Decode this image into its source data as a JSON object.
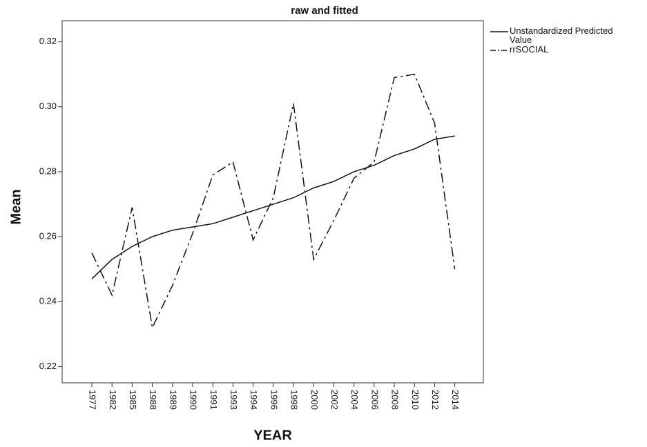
{
  "chart_data": {
    "type": "line",
    "title": "raw and fitted",
    "x_label": "YEAR",
    "y_label": "Mean",
    "categories": [
      "1977",
      "1982",
      "1985",
      "1988",
      "1989",
      "1990",
      "1991",
      "1993",
      "1994",
      "1996",
      "1998",
      "2000",
      "2002",
      "2004",
      "2006",
      "2008",
      "2010",
      "2012",
      "2014"
    ],
    "series": [
      {
        "name": "Unstandardized Predicted Value",
        "color": "#111111",
        "style": "solid",
        "values": [
          0.247,
          0.253,
          0.257,
          0.26,
          0.262,
          0.263,
          0.264,
          0.266,
          0.268,
          0.27,
          0.272,
          0.275,
          0.277,
          0.28,
          0.282,
          0.285,
          0.287,
          0.29,
          0.291
        ]
      },
      {
        "name": "rrSOCIAL",
        "color": "#111111",
        "style": "dash-dot",
        "values": [
          0.255,
          0.242,
          0.269,
          0.232,
          0.245,
          0.261,
          0.279,
          0.283,
          0.259,
          0.272,
          0.301,
          0.253,
          0.265,
          0.278,
          0.283,
          0.309,
          0.31,
          0.295,
          0.25
        ]
      }
    ],
    "ylim": [
      0.215,
      0.3265
    ],
    "yticks": [
      0.22,
      0.24,
      0.26,
      0.28,
      {
        "value": 0.3,
        "label": "0.30"
      },
      0.32
    ],
    "grid": false,
    "legend": "right"
  }
}
